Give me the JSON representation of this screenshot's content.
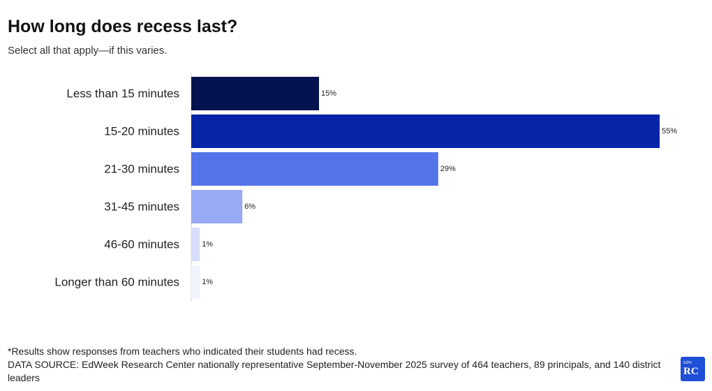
{
  "chart_data": {
    "type": "bar",
    "orientation": "horizontal",
    "title": "How long does recess last?",
    "subtitle": "Select all that apply—if this varies.",
    "categories": [
      "Less than 15 minutes",
      "15-20 minutes",
      "21-30 minutes",
      "31-45 minutes",
      "46-60 minutes",
      "Longer than 60 minutes"
    ],
    "values": [
      15,
      55,
      29,
      6,
      1,
      1
    ],
    "value_labels": [
      "15%",
      "55%",
      "29%",
      "6%",
      "1%",
      "1%"
    ],
    "colors": [
      "#04134f",
      "#0524a8",
      "#5474ea",
      "#98aaf4",
      "#d6defc",
      "#f1f4fd"
    ],
    "xlabel": "",
    "ylabel": "",
    "xlim": [
      0,
      55
    ]
  },
  "footnotes": {
    "note": "*Results show responses from teachers who indicated their students had recess.",
    "source": "DATA SOURCE: EdWeek Research Center nationally representative September-November 2025 survey of 464 teachers, 89 principals, and 140 district leaders"
  },
  "logo": {
    "small_text": "EdW",
    "big_text": "RC",
    "color": "#1f4fd6"
  }
}
